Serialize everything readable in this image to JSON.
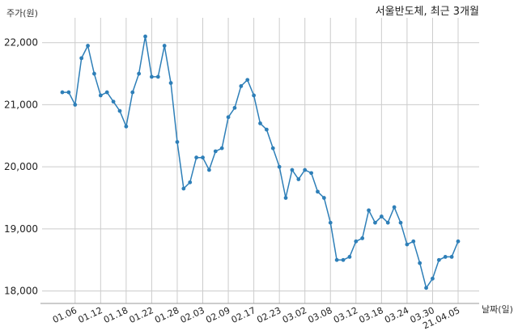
{
  "chart_data": {
    "type": "line",
    "title": "서울반도체, 최근 3개월",
    "ylabel": "주가(원)",
    "xlabel": "날짜(일)",
    "ylim": [
      17800,
      22400
    ],
    "yticks": [
      18000,
      19000,
      20000,
      21000,
      22000
    ],
    "ytick_labels": [
      "18,000",
      "19,000",
      "20,000",
      "21,000",
      "22,000"
    ],
    "xtick_labels": [
      "01.06",
      "01.12",
      "01.18",
      "01.22",
      "01.28",
      "02.03",
      "02.09",
      "02.17",
      "02.23",
      "03.02",
      "03.08",
      "03.12",
      "03.18",
      "03.24",
      "03.30",
      "21.04.05"
    ],
    "xtick_index": [
      2,
      6,
      10,
      14,
      18,
      22,
      26,
      30,
      34,
      38,
      42,
      46,
      50,
      54,
      58,
      62
    ],
    "grid": true,
    "series": [
      {
        "color": "#2e7fb8",
        "values": [
          21200,
          21200,
          21000,
          21750,
          21950,
          21500,
          21150,
          21200,
          21050,
          20900,
          20650,
          21200,
          21500,
          22100,
          21450,
          21450,
          21950,
          21350,
          20400,
          19650,
          19750,
          20150,
          20150,
          19950,
          20250,
          20300,
          20800,
          20950,
          21300,
          21400,
          21150,
          20700,
          20600,
          20300,
          20000,
          19500,
          19950,
          19800,
          19950,
          19900,
          19600,
          19500,
          19100,
          18500,
          18500,
          18550,
          18800,
          18850,
          19300,
          19100,
          19200,
          19100,
          19350,
          19100,
          18750,
          18800,
          18450,
          18050,
          18200,
          18500,
          18550,
          18550,
          18800
        ]
      }
    ]
  }
}
